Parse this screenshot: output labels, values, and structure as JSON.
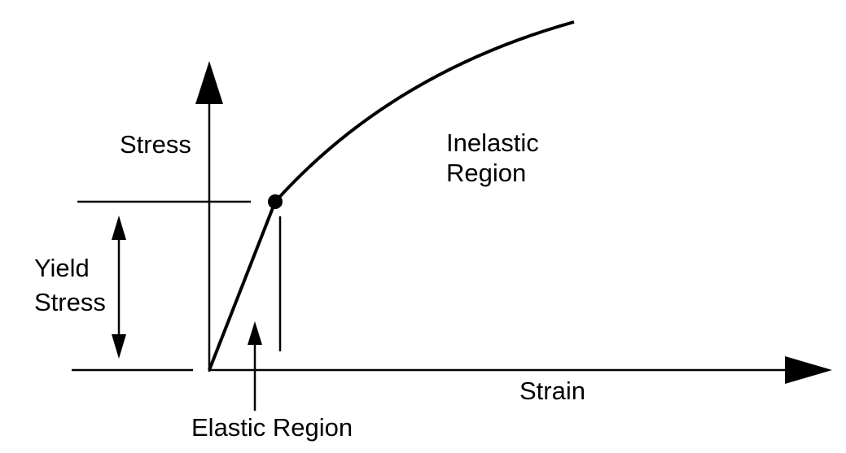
{
  "y_axis_label": "Stress",
  "x_axis_label": "Strain",
  "inelastic_region": {
    "lines": [
      "Inelastic",
      "Region"
    ]
  },
  "yield_stress": {
    "lines": [
      "Yield",
      "Stress"
    ]
  },
  "elastic_region": "Elastic Region"
}
